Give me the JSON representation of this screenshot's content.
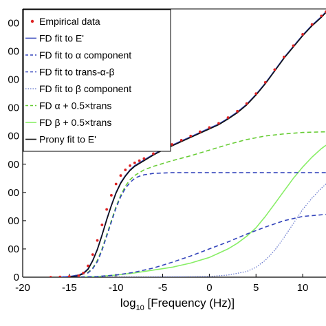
{
  "chart_data": {
    "type": "line",
    "xlabel": {
      "base": "log",
      "sub": "10",
      "rest": " [Frequency (Hz)]"
    },
    "ylabel": "",
    "xlim": [
      -20,
      12.5
    ],
    "ylim": [
      0,
      19
    ],
    "xticks": [
      -20,
      -15,
      -10,
      -5,
      0,
      5,
      10
    ],
    "xtick_labels": [
      "-20",
      "-15",
      "-10",
      "-5",
      "0",
      "5",
      "10"
    ],
    "yticks": [
      0,
      2,
      4,
      6,
      8,
      10,
      12,
      14,
      16,
      18
    ],
    "ytick_labels": [
      "0",
      "00",
      "00",
      "00",
      "00",
      "00",
      "00",
      "00",
      "00",
      "00"
    ],
    "legend_position": "top-left",
    "series": [
      {
        "name": "Empirical data",
        "color": "#dd2222",
        "style": "dots",
        "x": [
          -17,
          -16,
          -15,
          -14,
          -13.5,
          -13,
          -12.5,
          -12,
          -11.5,
          -11,
          -10.5,
          -10,
          -9.5,
          -9,
          -8.5,
          -8,
          -7.5,
          -7,
          -6,
          -5,
          -4,
          -3,
          -2,
          -1,
          0,
          1,
          2,
          3,
          4,
          5,
          6,
          7,
          8,
          9,
          10,
          11,
          12,
          12.5
        ],
        "y": [
          0,
          0.02,
          0.05,
          0.1,
          0.3,
          0.8,
          1.6,
          2.6,
          3.7,
          4.8,
          5.8,
          6.6,
          7.2,
          7.6,
          7.9,
          8.1,
          8.25,
          8.4,
          8.75,
          9.1,
          9.4,
          9.7,
          10.0,
          10.3,
          10.6,
          10.9,
          11.3,
          11.75,
          12.3,
          13.0,
          13.8,
          14.7,
          15.6,
          16.4,
          17.2,
          17.9,
          18.5,
          18.8
        ]
      },
      {
        "name": "FD fit to E'",
        "color": "#3344bb",
        "style": "solid",
        "x": [
          -16,
          -15,
          -14,
          -13.5,
          -13,
          -12.5,
          -12,
          -11.5,
          -11,
          -10.5,
          -10,
          -9.5,
          -9,
          -8.5,
          -8,
          -7.5,
          -7,
          -6,
          -5,
          -4,
          -3,
          -2,
          -1,
          0,
          1,
          2,
          3,
          4,
          5,
          6,
          7,
          8,
          9,
          10,
          11,
          12,
          12.5
        ],
        "y": [
          0,
          0.05,
          0.15,
          0.3,
          0.6,
          1.2,
          2.0,
          3.0,
          4.1,
          5.1,
          6.0,
          6.7,
          7.2,
          7.6,
          7.9,
          8.1,
          8.3,
          8.7,
          9.05,
          9.35,
          9.65,
          9.95,
          10.25,
          10.55,
          10.85,
          11.25,
          11.7,
          12.25,
          12.95,
          13.75,
          14.65,
          15.55,
          16.35,
          17.15,
          17.85,
          18.45,
          18.8
        ]
      },
      {
        "name": "FD fit to α component",
        "color": "#3344bb",
        "style": "dashed",
        "x": [
          -16,
          -15,
          -14,
          -13,
          -12.5,
          -12,
          -11.5,
          -11,
          -10.5,
          -10,
          -9.5,
          -9,
          -8.5,
          -8,
          -7.5,
          -7,
          -6,
          -4,
          -2,
          0,
          4,
          8,
          12.5
        ],
        "y": [
          0,
          0.05,
          0.15,
          0.3,
          0.6,
          1.1,
          1.9,
          2.9,
          3.9,
          4.9,
          5.7,
          6.3,
          6.7,
          7.0,
          7.15,
          7.25,
          7.35,
          7.4,
          7.4,
          7.4,
          7.4,
          7.4,
          7.4
        ]
      },
      {
        "name": "FD fit to trans-α-β",
        "color": "#3344bb",
        "style": "dashed",
        "x": [
          -16,
          -14,
          -12,
          -10,
          -8,
          -6,
          -4,
          -2,
          0,
          2,
          4,
          6,
          8,
          10,
          12.5
        ],
        "y": [
          0,
          0.01,
          0.05,
          0.15,
          0.35,
          0.65,
          1.05,
          1.5,
          2.0,
          2.5,
          3.05,
          3.55,
          4.0,
          4.3,
          4.45
        ]
      },
      {
        "name": "FD fit to β component",
        "color": "#6677cc",
        "style": "dotted",
        "x": [
          -16,
          -10,
          -5,
          0,
          2,
          4,
          5,
          6,
          7,
          8,
          9,
          10,
          11,
          12,
          12.5
        ],
        "y": [
          0,
          0,
          0.02,
          0.05,
          0.15,
          0.4,
          0.7,
          1.2,
          1.9,
          2.8,
          3.8,
          4.8,
          5.6,
          6.3,
          6.6
        ]
      },
      {
        "name": "FD α + 0.5×trans",
        "color": "#66cc33",
        "style": "dashed",
        "x": [
          -16,
          -15,
          -14,
          -13,
          -12.5,
          -12,
          -11.5,
          -11,
          -10.5,
          -10,
          -9.5,
          -9,
          -8.5,
          -8,
          -7.5,
          -7,
          -6,
          -4,
          -2,
          0,
          2,
          4,
          6,
          8,
          10,
          12.5
        ],
        "y": [
          0,
          0.05,
          0.15,
          0.35,
          0.65,
          1.2,
          2.0,
          3.0,
          4.0,
          5.0,
          5.8,
          6.45,
          6.9,
          7.2,
          7.4,
          7.6,
          7.85,
          8.25,
          8.6,
          9.0,
          9.4,
          9.75,
          10.0,
          10.15,
          10.25,
          10.3
        ]
      },
      {
        "name": "FD β + 0.5×trans",
        "color": "#88ee66",
        "style": "solid",
        "x": [
          -16,
          -14,
          -12,
          -10,
          -8,
          -6,
          -4,
          -2,
          0,
          1,
          2,
          3,
          4,
          5,
          6,
          7,
          8,
          9,
          10,
          11,
          12,
          12.5
        ],
        "y": [
          0,
          0.02,
          0.05,
          0.15,
          0.3,
          0.5,
          0.7,
          1.0,
          1.4,
          1.7,
          2.0,
          2.4,
          2.9,
          3.5,
          4.3,
          5.2,
          6.1,
          7.0,
          7.8,
          8.5,
          9.1,
          9.35
        ]
      },
      {
        "name": "Prony fit to E'",
        "color": "#111111",
        "style": "solid",
        "x": [
          -15,
          -14,
          -13.5,
          -13,
          -12.5,
          -12,
          -11.5,
          -11,
          -10.5,
          -10,
          -9.5,
          -9,
          -8.5,
          -8,
          -7.5,
          -7,
          -6,
          -5,
          -4,
          -3,
          -2,
          -1,
          0,
          1,
          2,
          3,
          4,
          5,
          6,
          7,
          8,
          9,
          10,
          11,
          12,
          12.5
        ],
        "y": [
          0,
          0.1,
          0.25,
          0.55,
          1.15,
          1.95,
          2.95,
          4.05,
          5.05,
          5.95,
          6.65,
          7.15,
          7.55,
          7.85,
          8.05,
          8.25,
          8.65,
          9.0,
          9.3,
          9.6,
          9.9,
          10.2,
          10.5,
          10.8,
          11.2,
          11.65,
          12.2,
          12.9,
          13.7,
          14.6,
          15.5,
          16.3,
          17.1,
          17.8,
          18.4,
          18.75
        ]
      }
    ]
  }
}
